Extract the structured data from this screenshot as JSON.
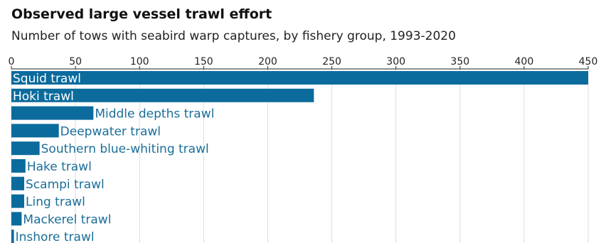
{
  "chart_data": {
    "type": "bar",
    "orientation": "horizontal",
    "title": "Observed large vessel trawl effort",
    "subtitle": "Number of tows with seabird warp captures, by fishery group, 1993-2020",
    "categories": [
      "Squid trawl",
      "Hoki trawl",
      "Middle depths trawl",
      "Deepwater trawl",
      "Southern blue-whiting trawl",
      "Hake trawl",
      "Scampi trawl",
      "Ling trawl",
      "Mackerel trawl",
      "Inshore trawl"
    ],
    "values": [
      450,
      236,
      64,
      37,
      22,
      11,
      10,
      10,
      8,
      2
    ],
    "xlim": [
      0,
      450
    ],
    "xticks": [
      0,
      50,
      100,
      150,
      200,
      250,
      300,
      350,
      400,
      450
    ],
    "x_axis_position": "top",
    "grid": true,
    "legend": "none",
    "colors": {
      "bar": "#0b6b9c",
      "label_outside": "#1b6e99",
      "label_inside": "#ffffff",
      "grid": "#dddddd",
      "axis": "#222222"
    }
  }
}
